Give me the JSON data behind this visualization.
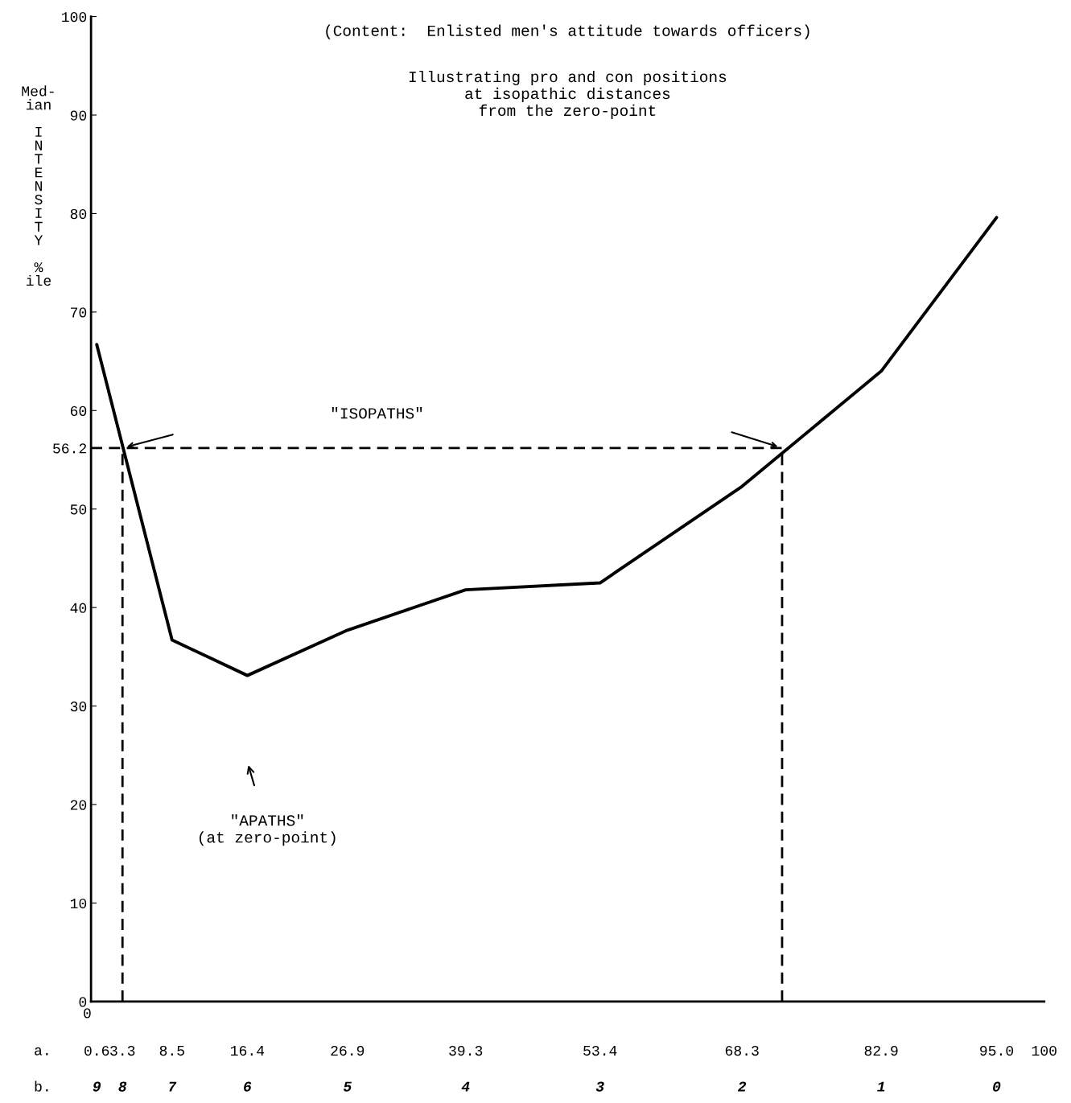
{
  "chart_data": {
    "type": "line",
    "title": "(Content:  Enlisted men's attitude towards officers)",
    "subtitle": "Illustrating pro and con positions\nat isopathic distances\nfrom the zero-point",
    "ylabel": "Med-\nian\n\nI\nN\nT\nE\nN\nS\nI\nT\nY\n\n%\nile",
    "series": [
      {
        "color": "#000000",
        "line_style": "solid",
        "x": [
          0.6,
          8.5,
          16.4,
          26.9,
          39.3,
          53.4,
          68.3,
          82.9,
          95.0
        ],
        "values": [
          66.7,
          36.7,
          33.1,
          37.7,
          41.8,
          42.5,
          52.3,
          64.0,
          79.6
        ]
      },
      {
        "color": "#000000",
        "line_style": "dashed",
        "x": [
          0,
          72.5
        ],
        "values": [
          56.2,
          56.2
        ]
      },
      {
        "color": "#000000",
        "line_style": "dashed",
        "x": [
          3.3,
          3.3
        ],
        "values": [
          0,
          56.2
        ]
      },
      {
        "color": "#000000",
        "line_style": "dashed",
        "x": [
          72.5,
          72.5
        ],
        "values": [
          0,
          56.2
        ]
      }
    ],
    "annotations": [
      "\"ISOPATHS\"",
      "\"APATHS\"\n(at zero-point)",
      "a.",
      "b.",
      "0",
      "9",
      "8",
      "7",
      "6",
      "5",
      "4",
      "3",
      "2",
      "1",
      "0"
    ],
    "xlim": [
      0,
      100
    ],
    "ylim": [
      0,
      100
    ],
    "xticks": [
      0.6,
      3.3,
      8.5,
      16.4,
      26.9,
      39.3,
      53.4,
      68.3,
      82.9,
      {
        "value": 95.0,
        "label": "95.0"
      },
      100
    ],
    "yticks": [
      0,
      10,
      20,
      30,
      40,
      50,
      {
        "value": 56.2,
        "label": "56.2"
      },
      60,
      70,
      80,
      90,
      100
    ],
    "grid": false,
    "legend": false,
    "marker": "none"
  }
}
